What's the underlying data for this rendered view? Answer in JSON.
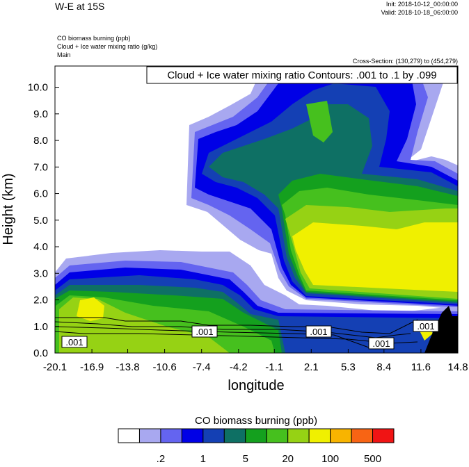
{
  "chart_data": {
    "type": "contour",
    "title": "W-E at 15S",
    "init": "Init: 2018-10-12_00:00:00",
    "valid": "Valid: 2018-10-18_06:00:00",
    "fields": [
      "CO biomass burning   (ppb)",
      "Cloud + Ice water mixing ratio   (g/kg)",
      "Main"
    ],
    "cross_section": "Cross-Section: (130,279) to (454,279)",
    "contour_info": "Cloud + Ice water mixing ratio Contours: .001 to .1 by .099",
    "x_label": "longitude",
    "y_label": "Height (km)",
    "xlim": [
      -20.1,
      14.8
    ],
    "xticks": [
      -20.1,
      -16.9,
      -13.8,
      -10.6,
      -7.4,
      -4.2,
      -1.1,
      2.1,
      5.3,
      8.4,
      11.6,
      14.8
    ],
    "ylim": [
      0,
      10.8
    ],
    "yticks": [
      {
        "value": 0,
        "label": "0.0"
      },
      {
        "value": 1,
        "label": "1.0"
      },
      {
        "value": 2,
        "label": "2.0"
      },
      {
        "value": 3,
        "label": "3.0"
      },
      {
        "value": 4,
        "label": "4.0"
      },
      {
        "value": 5,
        "label": "5.0"
      },
      {
        "value": 6,
        "label": "6.0"
      },
      {
        "value": 7,
        "label": "7.0"
      },
      {
        "value": 8,
        "label": "8.0"
      },
      {
        "value": 9,
        "label": "9.0"
      },
      {
        "value": 10,
        "label": "10.0"
      }
    ],
    "contour_labels": [
      ".001",
      ".001",
      ".001",
      ".001",
      ".001"
    ],
    "colorbar": {
      "title": "CO biomass burning  (ppb)",
      "colors": [
        "#ffffff",
        "#a8a8f0",
        "#6464f0",
        "#0000e6",
        "#1440b4",
        "#0e7064",
        "#14a01e",
        "#46c01e",
        "#96d214",
        "#f0f000",
        "#f8b400",
        "#f86414",
        "#f01414"
      ],
      "ticks": [
        {
          "value": 0.2,
          "label": ".2"
        },
        1,
        5,
        20,
        100,
        500
      ]
    }
  }
}
